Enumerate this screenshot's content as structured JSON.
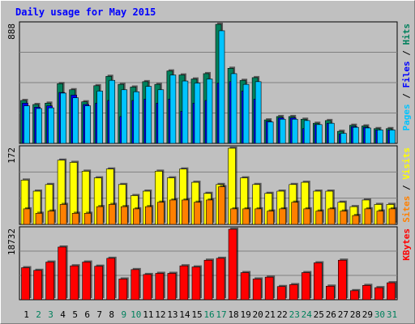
{
  "title": "Daily usage for May 2015",
  "colors": {
    "background": "#c0c0c0",
    "plot_bg": "#c0c0c0",
    "title": "#0000ff",
    "hits": "#00805c",
    "files": "#0000ff",
    "pages": "#00c4ff",
    "visits": "#ffff00",
    "sites": "#ff8000",
    "kbytes": "#ff0000",
    "weekday_label": "#000000",
    "weekend_label": "#00805c"
  },
  "panels": {
    "top": {
      "max_label": "888",
      "legend": [
        "Pages",
        "Files",
        "Hits"
      ]
    },
    "middle": {
      "max_label": "172",
      "legend": [
        "Sites",
        "Visits"
      ]
    },
    "bottom": {
      "max_label": "18732",
      "legend": [
        "KBytes"
      ]
    }
  },
  "chart_data": {
    "type": "bar",
    "title": "Daily usage for May 2015",
    "categories": [
      "1",
      "2",
      "3",
      "4",
      "5",
      "6",
      "7",
      "8",
      "9",
      "10",
      "11",
      "12",
      "13",
      "14",
      "15",
      "16",
      "17",
      "18",
      "19",
      "20",
      "21",
      "22",
      "23",
      "24",
      "25",
      "26",
      "27",
      "28",
      "29",
      "30",
      "31"
    ],
    "weekend_days": [
      "2",
      "3",
      "9",
      "10",
      "16",
      "17",
      "23",
      "24",
      "30",
      "31"
    ],
    "series": [
      {
        "name": "Hits",
        "values": [
          320,
          290,
          300,
          445,
          400,
          310,
          430,
          500,
          440,
          420,
          460,
          440,
          540,
          510,
          480,
          520,
          888,
          560,
          470,
          490,
          175,
          200,
          200,
          180,
          150,
          170,
          90,
          135,
          130,
          110,
          110
        ]
      },
      {
        "name": "Files",
        "values": [
          300,
          270,
          280,
          380,
          360,
          290,
          300,
          320,
          200,
          320,
          330,
          300,
          330,
          240,
          300,
          320,
          450,
          460,
          390,
          330,
          165,
          190,
          190,
          110,
          140,
          150,
          70,
          125,
          120,
          100,
          100
        ]
      },
      {
        "name": "Pages",
        "values": [
          280,
          260,
          265,
          375,
          340,
          280,
          390,
          470,
          400,
          385,
          425,
          400,
          510,
          465,
          450,
          480,
          840,
          520,
          440,
          460,
          160,
          180,
          180,
          170,
          140,
          150,
          75,
          120,
          115,
          100,
          100
        ]
      },
      {
        "name": "Visits",
        "values": [
          100,
          75,
          90,
          145,
          140,
          120,
          105,
          125,
          90,
          65,
          75,
          120,
          105,
          125,
          95,
          70,
          90,
          172,
          105,
          90,
          70,
          75,
          90,
          95,
          75,
          75,
          50,
          40,
          55,
          45,
          45
        ]
      },
      {
        "name": "Sites",
        "values": [
          35,
          25,
          30,
          45,
          25,
          25,
          40,
          45,
          40,
          35,
          40,
          50,
          55,
          55,
          50,
          55,
          85,
          35,
          35,
          35,
          30,
          35,
          50,
          35,
          30,
          35,
          30,
          20,
          35,
          30,
          35
        ]
      },
      {
        "name": "KBytes",
        "values": [
          8500,
          7800,
          10000,
          14000,
          9000,
          10000,
          8900,
          11000,
          5500,
          8000,
          6700,
          7000,
          7000,
          9000,
          8700,
          10500,
          11000,
          18732,
          7200,
          5500,
          6000,
          3500,
          4000,
          7200,
          9800,
          3600,
          10500,
          2400,
          3800,
          3200,
          4500
        ]
      }
    ],
    "panels": [
      {
        "series": [
          "Hits",
          "Files",
          "Pages"
        ],
        "ylim": [
          0,
          888
        ],
        "max_label": "888"
      },
      {
        "series": [
          "Visits",
          "Sites"
        ],
        "ylim": [
          0,
          172
        ],
        "max_label": "172"
      },
      {
        "series": [
          "KBytes"
        ],
        "ylim": [
          0,
          18732
        ],
        "max_label": "18732"
      }
    ]
  }
}
